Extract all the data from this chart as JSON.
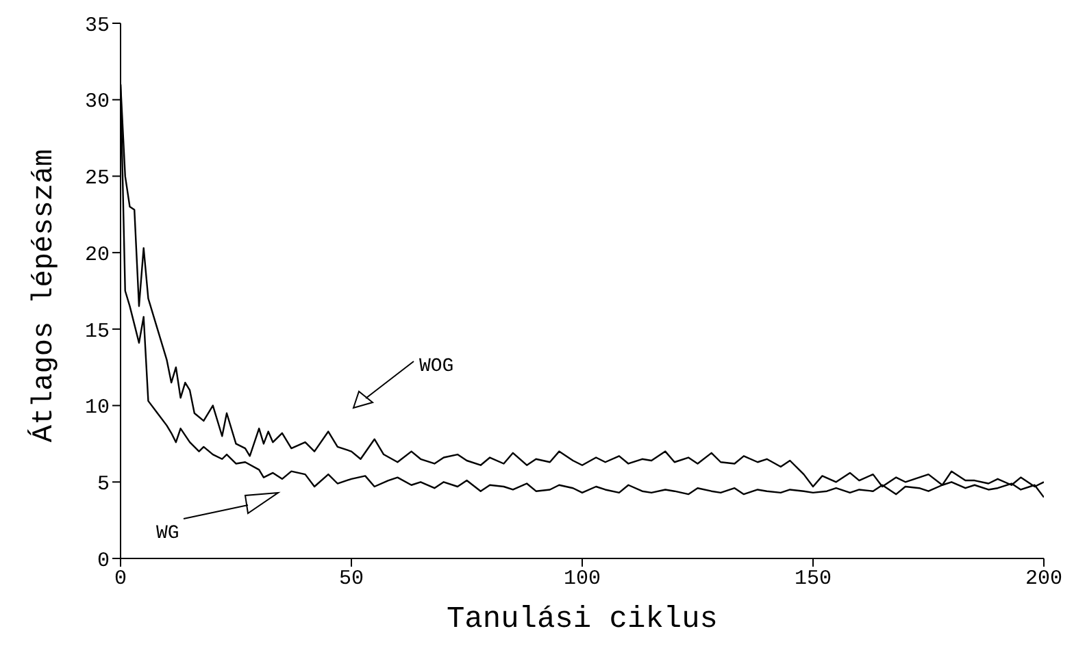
{
  "chart_data": {
    "type": "line",
    "xlabel": "Tanulási ciklus",
    "ylabel": "Átlagos lépésszám",
    "xlim": [
      0,
      200
    ],
    "ylim": [
      0,
      35
    ],
    "xticks": [
      0,
      50,
      100,
      150,
      200
    ],
    "yticks": [
      0,
      5,
      10,
      15,
      20,
      25,
      30,
      35
    ],
    "marker": "none",
    "line_style": "solid",
    "series": [
      {
        "color": "#000000",
        "x": [
          0,
          1,
          2,
          3,
          4,
          5,
          6,
          8,
          10,
          11,
          12,
          13,
          14,
          15,
          16,
          18,
          20,
          22,
          23,
          25,
          27,
          28,
          30,
          31,
          32,
          33,
          35,
          37,
          40,
          42,
          45,
          47,
          50,
          52,
          55,
          57,
          60,
          63,
          65,
          68,
          70,
          73,
          75,
          78,
          80,
          83,
          85,
          88,
          90,
          93,
          95,
          98,
          100,
          103,
          105,
          108,
          110,
          113,
          115,
          118,
          120,
          123,
          125,
          128,
          130,
          133,
          135,
          138,
          140,
          143,
          145,
          148,
          150,
          152,
          155,
          158,
          160,
          163,
          165,
          168,
          170,
          173,
          175,
          178,
          180,
          183,
          185,
          188,
          190,
          193,
          195,
          198,
          200
        ],
        "values": [
          31,
          25,
          23,
          22.8,
          16.5,
          20.3,
          17,
          15,
          13,
          11.5,
          12.5,
          10.5,
          11.5,
          11,
          9.5,
          9,
          10,
          8,
          9.5,
          7.5,
          7.2,
          6.7,
          8.5,
          7.5,
          8.3,
          7.6,
          8.2,
          7.2,
          7.6,
          7,
          8.3,
          7.3,
          7,
          6.5,
          7.8,
          6.8,
          6.3,
          7,
          6.5,
          6.2,
          6.6,
          6.8,
          6.4,
          6.1,
          6.6,
          6.2,
          6.9,
          6.1,
          6.5,
          6.3,
          7,
          6.4,
          6.1,
          6.6,
          6.3,
          6.7,
          6.2,
          6.5,
          6.4,
          7,
          6.3,
          6.6,
          6.2,
          6.9,
          6.3,
          6.2,
          6.7,
          6.3,
          6.5,
          6,
          6.4,
          5.5,
          4.7,
          5.4,
          5,
          5.6,
          5.1,
          5.5,
          4.7,
          5.3,
          5,
          5.3,
          5.5,
          4.8,
          5.7,
          5.1,
          5.1,
          4.9,
          5.2,
          4.8,
          5.3,
          4.7,
          5
        ]
      },
      {
        "color": "#000000",
        "x": [
          0,
          1,
          2,
          3,
          4,
          5,
          6,
          8,
          10,
          11,
          12,
          13,
          15,
          17,
          18,
          20,
          22,
          23,
          25,
          27,
          30,
          31,
          33,
          35,
          37,
          40,
          42,
          45,
          47,
          50,
          53,
          55,
          58,
          60,
          63,
          65,
          68,
          70,
          73,
          75,
          78,
          80,
          83,
          85,
          88,
          90,
          93,
          95,
          98,
          100,
          103,
          105,
          108,
          110,
          113,
          115,
          118,
          120,
          123,
          125,
          128,
          130,
          133,
          135,
          138,
          140,
          143,
          145,
          148,
          150,
          153,
          155,
          158,
          160,
          163,
          165,
          168,
          170,
          173,
          175,
          178,
          180,
          183,
          185,
          188,
          190,
          193,
          195,
          198,
          200
        ],
        "values": [
          31,
          17.5,
          16.5,
          15.3,
          14.1,
          15.8,
          10.3,
          9.5,
          8.7,
          8.2,
          7.6,
          8.5,
          7.6,
          7,
          7.3,
          6.8,
          6.5,
          6.8,
          6.2,
          6.3,
          5.8,
          5.3,
          5.6,
          5.2,
          5.7,
          5.5,
          4.7,
          5.5,
          4.9,
          5.2,
          5.4,
          4.7,
          5.1,
          5.3,
          4.8,
          5,
          4.6,
          5,
          4.7,
          5.1,
          4.4,
          4.8,
          4.7,
          4.5,
          4.9,
          4.4,
          4.5,
          4.8,
          4.6,
          4.3,
          4.7,
          4.5,
          4.3,
          4.8,
          4.4,
          4.3,
          4.5,
          4.4,
          4.2,
          4.6,
          4.4,
          4.3,
          4.6,
          4.2,
          4.5,
          4.4,
          4.3,
          4.5,
          4.4,
          4.3,
          4.4,
          4.6,
          4.3,
          4.5,
          4.4,
          4.8,
          4.2,
          4.7,
          4.6,
          4.4,
          4.8,
          5,
          4.6,
          4.8,
          4.5,
          4.6,
          4.9,
          4.5,
          4.8,
          4
        ]
      }
    ],
    "annotations": [
      "WOG",
      "WG"
    ]
  }
}
